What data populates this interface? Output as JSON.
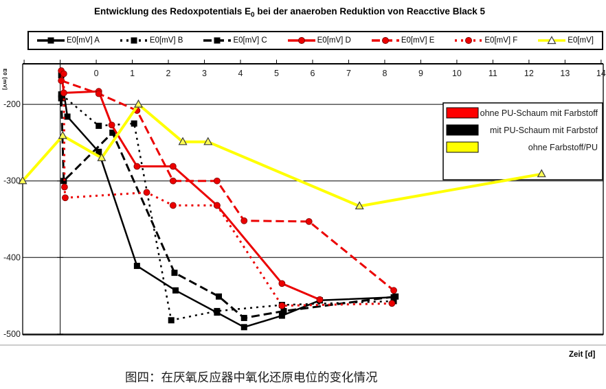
{
  "title": {
    "pre": "Entwicklung des Redoxpotentials E",
    "sub": "0",
    "post": " bei der anaeroben Reduktion von Reacctive Black 5"
  },
  "axis_labels": {
    "y": "E0 [mV]",
    "x": "Zeit [d]"
  },
  "caption": "图四：在厌氧反应器中氧化还原电位的变化情况",
  "colors": {
    "red": "#EB0000",
    "yellow": "#FFFF00",
    "black": "#000000",
    "grid": "#000000",
    "outer_bottom_line": "#9a9a9a",
    "tick_text": "#1a1a1a"
  },
  "inner_legend": {
    "items": [
      {
        "label": "ohne PU-Schaum mit Farbstoff",
        "color": "#FF0000"
      },
      {
        "label": "mit PU-Schaum mit Farbstof",
        "color": "#000000"
      },
      {
        "label": "ohne Farbstoff/PU",
        "color": "#FFFF00"
      }
    ]
  },
  "chart_data": {
    "type": "line",
    "title": "Entwicklung des Redoxpotentials E0 bei der anaeroben Reduktion von Reacctive Black 5",
    "xlabel": "Zeit [d]",
    "ylabel": "E0 [mV]",
    "x_axis_side": "top",
    "grid": "horizontal",
    "legend_position": "top",
    "xlim": [
      -2.04,
      14.06
    ],
    "ylim": [
      -501,
      -147
    ],
    "x_ticks": [
      0,
      1,
      2,
      3,
      4,
      5,
      6,
      7,
      8,
      9,
      10,
      11,
      12,
      13,
      14
    ],
    "y_ticks": [
      -200,
      -300,
      -400,
      -500
    ],
    "value_axis_x": -1,
    "series": [
      {
        "label": "E0[mV] A",
        "color": "#000000",
        "dash": "solid",
        "marker": "square",
        "points": [
          [
            -0.97,
            -162
          ],
          [
            -0.8,
            -216
          ],
          [
            0.07,
            -262
          ],
          [
            1.13,
            -411
          ],
          [
            2.2,
            -443
          ],
          [
            3.35,
            -472
          ],
          [
            4.1,
            -491
          ],
          [
            5.15,
            -476
          ],
          [
            6.2,
            -456
          ],
          [
            8.25,
            -452
          ]
        ]
      },
      {
        "label": "E0[mV] B",
        "color": "#000000",
        "dash": "dot",
        "marker": "square",
        "points": [
          [
            -0.97,
            -187
          ],
          [
            0.07,
            -228
          ],
          [
            1.05,
            -225
          ],
          [
            2.08,
            -482
          ],
          [
            3.35,
            -470
          ],
          [
            5.15,
            -462
          ],
          [
            8.25,
            -457
          ]
        ]
      },
      {
        "label": "E0[mV] C",
        "color": "#000000",
        "dash": "dash",
        "marker": "square",
        "points": [
          [
            -0.97,
            -192
          ],
          [
            -0.9,
            -300
          ],
          [
            0.45,
            -237
          ],
          [
            2.17,
            -420
          ],
          [
            3.4,
            -451
          ],
          [
            4.1,
            -479
          ],
          [
            5.2,
            -470
          ],
          [
            8.3,
            -451
          ]
        ]
      },
      {
        "label": "E0[mV] D",
        "color": "#EB0000",
        "dash": "solid",
        "marker": "circle",
        "points": [
          [
            -0.97,
            -156
          ],
          [
            -0.9,
            -185
          ],
          [
            0.07,
            -183
          ],
          [
            0.43,
            -227
          ],
          [
            1.13,
            -281
          ],
          [
            2.13,
            -281
          ],
          [
            3.35,
            -332
          ],
          [
            5.15,
            -434
          ],
          [
            6.2,
            -455
          ]
        ]
      },
      {
        "label": "E0[mV] E",
        "color": "#EB0000",
        "dash": "dash",
        "marker": "circle",
        "points": [
          [
            -0.97,
            -169
          ],
          [
            0.07,
            -186
          ],
          [
            1.13,
            -208
          ],
          [
            2.13,
            -300
          ],
          [
            3.35,
            -300
          ],
          [
            4.1,
            -352
          ],
          [
            5.9,
            -353
          ],
          [
            8.25,
            -443
          ]
        ]
      },
      {
        "label": "E0[mV] F",
        "color": "#EB0000",
        "dash": "dot",
        "marker": "circle",
        "points": [
          [
            -0.9,
            -160
          ],
          [
            -0.88,
            -308
          ],
          [
            -0.86,
            -322
          ],
          [
            1.4,
            -315
          ],
          [
            2.13,
            -332
          ],
          [
            3.35,
            -332
          ],
          [
            5.15,
            -463
          ],
          [
            8.2,
            -460
          ]
        ]
      },
      {
        "label": "E0[mV]",
        "color": "#FFFF00",
        "dash": "solid",
        "marker": "triangle",
        "points": [
          [
            -2.04,
            -300
          ],
          [
            -0.93,
            -241
          ],
          [
            0.15,
            -270
          ],
          [
            1.17,
            -200
          ],
          [
            2.4,
            -249
          ],
          [
            3.1,
            -249
          ],
          [
            7.3,
            -333
          ],
          [
            12.35,
            -291
          ]
        ]
      }
    ]
  }
}
